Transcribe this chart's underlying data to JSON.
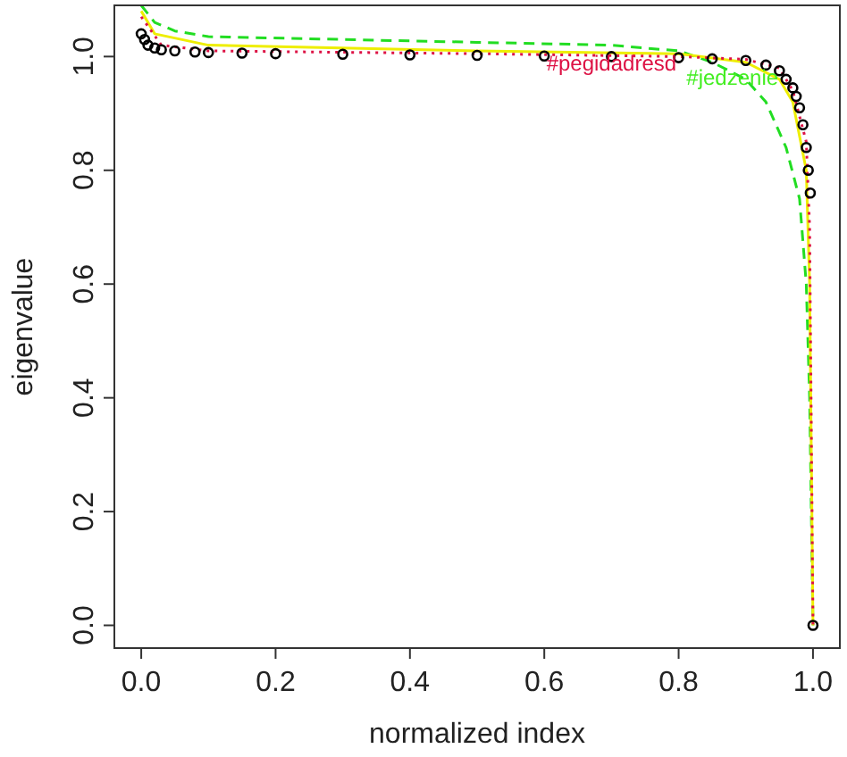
{
  "chart_data": {
    "type": "line",
    "xlabel": "normalized index",
    "ylabel": "eigenvalue",
    "xlim": [
      -0.04,
      1.04
    ],
    "ylim": [
      -0.04,
      1.09
    ],
    "xticks": [
      {
        "value": 0,
        "label": "0.0"
      },
      {
        "value": 0.2,
        "label": "0.2"
      },
      {
        "value": 0.4,
        "label": "0.4"
      },
      {
        "value": 0.6,
        "label": "0.6"
      },
      {
        "value": 0.8,
        "label": "0.8"
      },
      {
        "value": 1,
        "label": "1.0"
      }
    ],
    "yticks": [
      {
        "value": 0,
        "label": "0.0"
      },
      0.2,
      0.4,
      0.6,
      0.8,
      {
        "value": 1,
        "label": "1.0"
      }
    ],
    "series": [
      {
        "color": "#22dd22",
        "line_style": "dashed",
        "marker": "none",
        "x": [
          0,
          0.02,
          0.05,
          0.1,
          0.3,
          0.5,
          0.7,
          0.8,
          0.85,
          0.9,
          0.93,
          0.96,
          0.98,
          0.99,
          0.995,
          1
        ],
        "values": [
          1.09,
          1.06,
          1.045,
          1.035,
          1.03,
          1.025,
          1.02,
          1.01,
          0.99,
          0.96,
          0.92,
          0.84,
          0.75,
          0.6,
          0.4,
          0
        ]
      },
      {
        "color": "#eeee00",
        "line_style": "solid",
        "marker": "none",
        "x": [
          0,
          0.02,
          0.1,
          0.5,
          0.8,
          0.9,
          0.95,
          0.97,
          0.99,
          0.995,
          1
        ],
        "values": [
          1.08,
          1.04,
          1.02,
          1.01,
          1.005,
          0.99,
          0.96,
          0.92,
          0.8,
          0.6,
          0
        ]
      },
      {
        "color": "#dd1144",
        "line_style": "dotted",
        "marker": "none",
        "x": [
          0,
          0.03,
          0.1,
          0.5,
          0.8,
          0.9,
          0.95,
          0.97,
          0.99,
          0.995,
          1
        ],
        "values": [
          1.07,
          1.02,
          1.01,
          1.005,
          1,
          0.995,
          0.98,
          0.94,
          0.85,
          0.7,
          0
        ]
      },
      {
        "color": "#000000",
        "type": "scatter",
        "marker": "circle",
        "x": [
          0,
          0.005,
          0.01,
          0.02,
          0.03,
          0.05,
          0.08,
          0.1,
          0.15,
          0.2,
          0.3,
          0.4,
          0.5,
          0.6,
          0.7,
          0.8,
          0.85,
          0.9,
          0.93,
          0.95,
          0.96,
          0.97,
          0.975,
          0.98,
          0.985,
          0.99,
          0.993,
          0.996,
          1
        ],
        "values": [
          1.04,
          1.03,
          1.02,
          1.015,
          1.012,
          1.01,
          1.008,
          1.007,
          1.006,
          1.005,
          1.004,
          1.003,
          1.002,
          1.001,
          1,
          0.998,
          0.996,
          0.993,
          0.985,
          0.975,
          0.96,
          0.945,
          0.93,
          0.91,
          0.88,
          0.84,
          0.8,
          0.76,
          0
        ]
      }
    ],
    "annotations": [
      {
        "text": "#pegidadresd",
        "x": 0.7,
        "y": 0.985
      },
      {
        "text": "#jedzenie",
        "x": 0.88,
        "y": 0.96
      }
    ]
  }
}
